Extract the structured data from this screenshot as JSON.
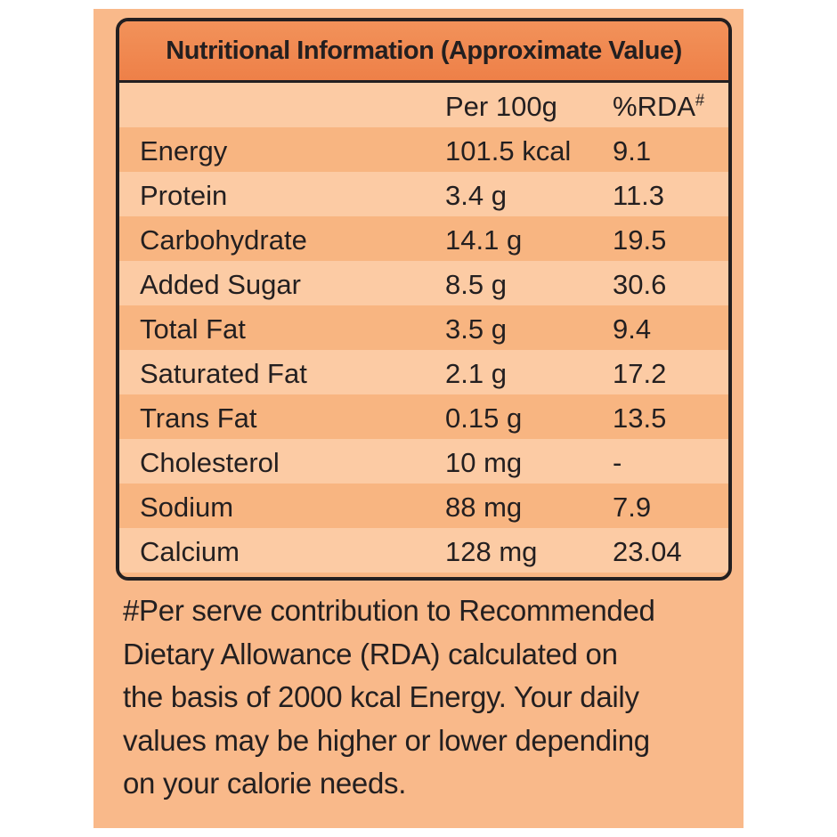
{
  "title": "Nutritional Information (Approximate Value)",
  "table": {
    "columns": [
      "Per 100g",
      {
        "text": "%RDA",
        "sup": "#"
      }
    ],
    "rows": [
      [
        "Energy",
        "101.5 kcal",
        "9.1"
      ],
      [
        "Protein",
        "3.4 g",
        "11.3"
      ],
      [
        "Carbohydrate",
        "14.1 g",
        "19.5"
      ],
      [
        "Added Sugar",
        "8.5 g",
        "30.6"
      ],
      [
        "Total Fat",
        "3.5 g",
        "9.4"
      ],
      [
        "Saturated Fat",
        "2.1 g",
        "17.2"
      ],
      [
        "Trans Fat",
        "0.15 g",
        "13.5"
      ],
      [
        "Cholesterol",
        "10 mg",
        "-"
      ],
      [
        "Sodium",
        "88 mg",
        "7.9"
      ],
      [
        "Calcium",
        "128 mg",
        "23.04"
      ]
    ]
  },
  "footnote": [
    "#Per serve contribution to Recommended",
    "Dietary Allowance (RDA) calculated on",
    "the basis of 2000 kcal Energy. Your daily",
    "values may be higher or lower depending",
    "on your calorie needs."
  ]
}
